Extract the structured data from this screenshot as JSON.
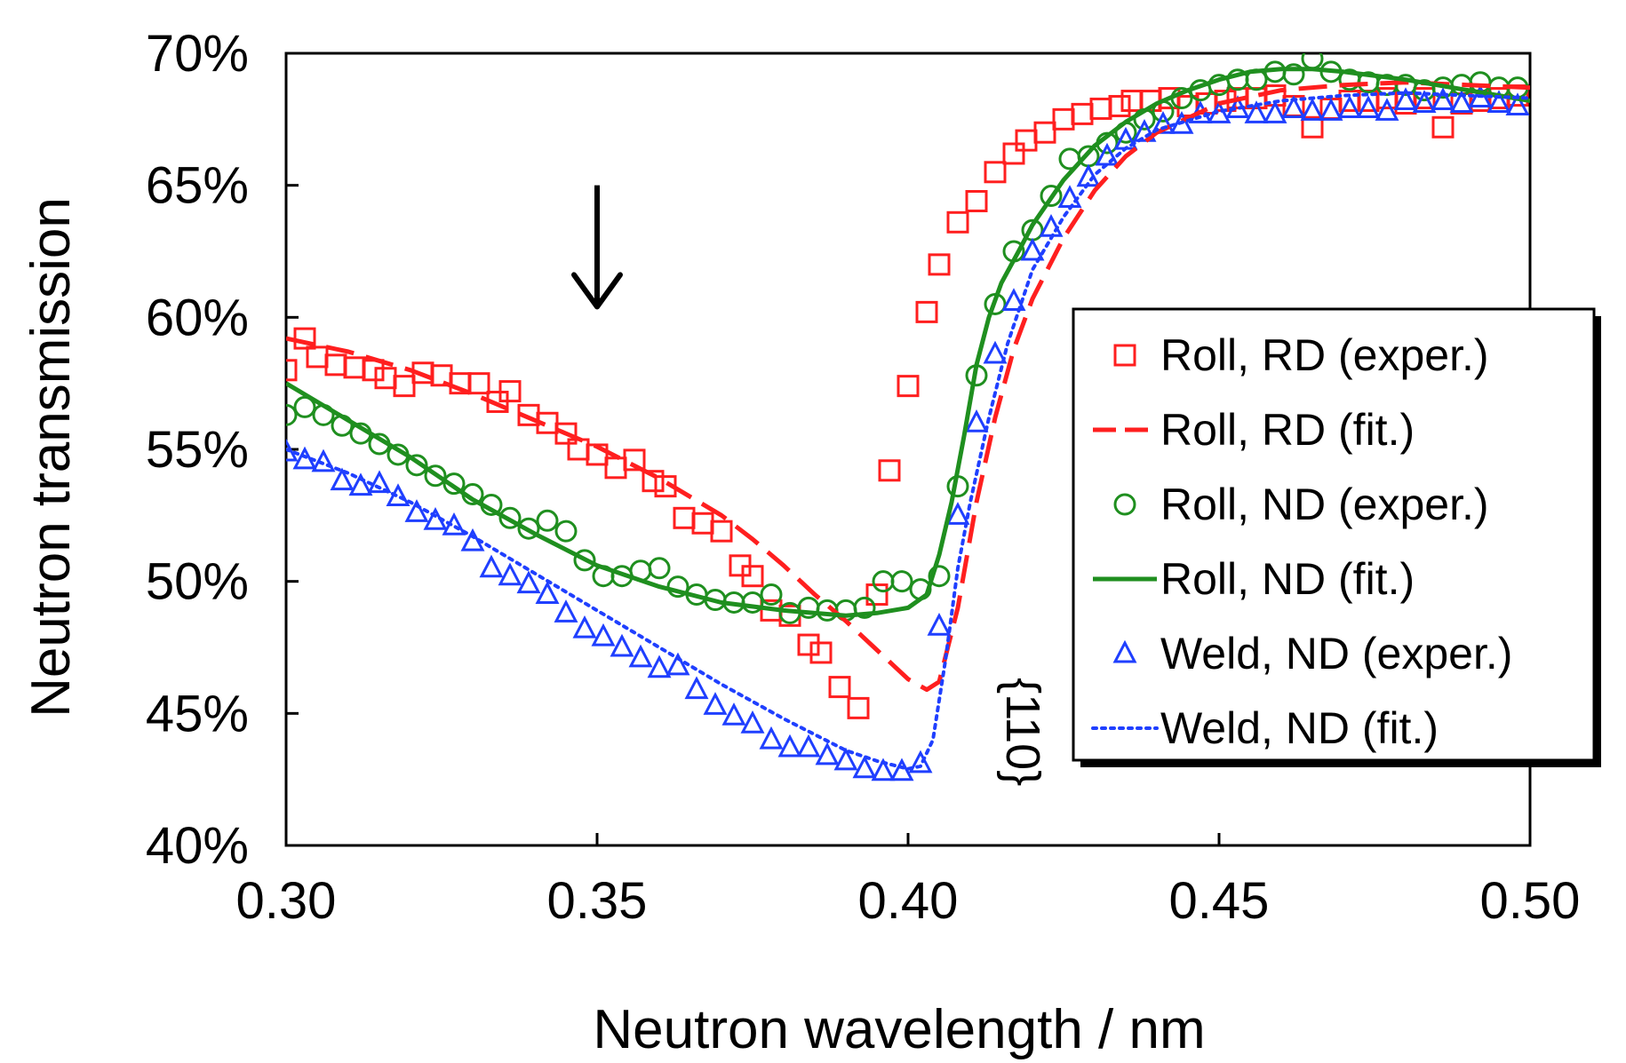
{
  "chart_data": {
    "type": "scatter",
    "xlabel": "Neutron wavelength / nm",
    "ylabel": "Neutron transmission",
    "xlim": [
      0.3,
      0.5
    ],
    "ylim": [
      0.4,
      0.7
    ],
    "x_ticks": [
      0.3,
      0.35,
      0.4,
      0.45,
      0.5
    ],
    "x_tick_labels": [
      "0.30",
      "0.35",
      "0.40",
      "0.45",
      "0.50"
    ],
    "y_ticks": [
      0.4,
      0.45,
      0.5,
      0.55,
      0.6,
      0.65,
      0.7
    ],
    "y_tick_labels": [
      "40%",
      "45%",
      "50%",
      "55%",
      "60%",
      "65%",
      "70%"
    ],
    "grid": false,
    "legend_position": "right",
    "annotations": [
      {
        "text": "{110}",
        "x": 0.413,
        "y": 0.443,
        "rotation": 90
      },
      {
        "type": "arrow",
        "x": 0.35,
        "y_from": 0.65,
        "y_to": 0.604
      }
    ],
    "series": [
      {
        "name": "Roll, RD (exper.)",
        "kind": "points",
        "marker": "square",
        "color": "#ff1f1f",
        "x": [
          0.3,
          0.303,
          0.305,
          0.308,
          0.311,
          0.314,
          0.316,
          0.319,
          0.322,
          0.325,
          0.328,
          0.331,
          0.334,
          0.336,
          0.339,
          0.342,
          0.345,
          0.347,
          0.35,
          0.353,
          0.356,
          0.359,
          0.361,
          0.364,
          0.367,
          0.37,
          0.373,
          0.375,
          0.378,
          0.381,
          0.384,
          0.386,
          0.389,
          0.392,
          0.395,
          0.397,
          0.4,
          0.403,
          0.405,
          0.408,
          0.411,
          0.414,
          0.417,
          0.419,
          0.422,
          0.425,
          0.428,
          0.431,
          0.434,
          0.436,
          0.439,
          0.442,
          0.445,
          0.448,
          0.451,
          0.453,
          0.456,
          0.459,
          0.462,
          0.465,
          0.468,
          0.471,
          0.474,
          0.477,
          0.48,
          0.483,
          0.486,
          0.489,
          0.492,
          0.495,
          0.498
        ],
        "y": [
          0.58,
          0.592,
          0.585,
          0.582,
          0.581,
          0.58,
          0.577,
          0.574,
          0.579,
          0.578,
          0.575,
          0.575,
          0.568,
          0.572,
          0.563,
          0.56,
          0.556,
          0.55,
          0.548,
          0.543,
          0.546,
          0.538,
          0.536,
          0.524,
          0.522,
          0.519,
          0.506,
          0.502,
          0.489,
          0.487,
          0.476,
          0.473,
          0.46,
          0.452,
          0.495,
          0.542,
          0.574,
          0.602,
          0.62,
          0.636,
          0.644,
          0.655,
          0.662,
          0.667,
          0.67,
          0.675,
          0.677,
          0.679,
          0.68,
          0.682,
          0.682,
          0.683,
          0.68,
          0.681,
          0.682,
          0.683,
          0.683,
          0.684,
          0.68,
          0.672,
          0.679,
          0.682,
          0.682,
          0.683,
          0.681,
          0.683,
          0.672,
          0.681,
          0.682,
          0.683,
          0.684
        ]
      },
      {
        "name": "Roll, RD (fit.)",
        "kind": "line",
        "dash": "dashed",
        "color": "#ff1f1f",
        "x": [
          0.3,
          0.31,
          0.32,
          0.33,
          0.34,
          0.35,
          0.36,
          0.37,
          0.375,
          0.38,
          0.385,
          0.39,
          0.395,
          0.4,
          0.403,
          0.405,
          0.408,
          0.411,
          0.414,
          0.417,
          0.42,
          0.425,
          0.43,
          0.435,
          0.44,
          0.45,
          0.46,
          0.47,
          0.48,
          0.49,
          0.5
        ],
        "y": [
          0.592,
          0.587,
          0.58,
          0.571,
          0.561,
          0.551,
          0.539,
          0.525,
          0.516,
          0.506,
          0.495,
          0.485,
          0.474,
          0.463,
          0.459,
          0.462,
          0.49,
          0.53,
          0.562,
          0.588,
          0.607,
          0.63,
          0.648,
          0.661,
          0.67,
          0.681,
          0.686,
          0.688,
          0.689,
          0.688,
          0.687
        ]
      },
      {
        "name": "Roll, ND (exper.)",
        "kind": "points",
        "marker": "circle",
        "color": "#1f8f1f",
        "x": [
          0.3,
          0.303,
          0.306,
          0.309,
          0.312,
          0.315,
          0.318,
          0.321,
          0.324,
          0.327,
          0.33,
          0.333,
          0.336,
          0.339,
          0.342,
          0.345,
          0.348,
          0.351,
          0.354,
          0.357,
          0.36,
          0.363,
          0.366,
          0.369,
          0.372,
          0.375,
          0.378,
          0.381,
          0.384,
          0.387,
          0.39,
          0.393,
          0.396,
          0.399,
          0.402,
          0.405,
          0.408,
          0.411,
          0.414,
          0.417,
          0.42,
          0.423,
          0.426,
          0.429,
          0.432,
          0.435,
          0.438,
          0.441,
          0.444,
          0.447,
          0.45,
          0.453,
          0.456,
          0.459,
          0.462,
          0.465,
          0.468,
          0.471,
          0.474,
          0.477,
          0.48,
          0.483,
          0.486,
          0.489,
          0.492,
          0.495,
          0.498
        ],
        "y": [
          0.563,
          0.566,
          0.563,
          0.559,
          0.556,
          0.552,
          0.548,
          0.544,
          0.54,
          0.537,
          0.533,
          0.529,
          0.524,
          0.52,
          0.523,
          0.519,
          0.508,
          0.502,
          0.502,
          0.504,
          0.505,
          0.498,
          0.495,
          0.493,
          0.492,
          0.492,
          0.495,
          0.488,
          0.49,
          0.489,
          0.489,
          0.49,
          0.5,
          0.5,
          0.497,
          0.502,
          0.536,
          0.578,
          0.605,
          0.625,
          0.633,
          0.646,
          0.66,
          0.661,
          0.666,
          0.67,
          0.675,
          0.678,
          0.683,
          0.686,
          0.688,
          0.69,
          0.69,
          0.693,
          0.692,
          0.698,
          0.693,
          0.69,
          0.689,
          0.688,
          0.688,
          0.686,
          0.687,
          0.688,
          0.689,
          0.687,
          0.687
        ]
      },
      {
        "name": "Roll, ND (fit.)",
        "kind": "line",
        "dash": "solid",
        "color": "#1f8f1f",
        "x": [
          0.3,
          0.31,
          0.32,
          0.33,
          0.34,
          0.35,
          0.36,
          0.37,
          0.38,
          0.39,
          0.395,
          0.4,
          0.403,
          0.405,
          0.407,
          0.409,
          0.411,
          0.413,
          0.415,
          0.418,
          0.42,
          0.425,
          0.43,
          0.435,
          0.44,
          0.445,
          0.45,
          0.455,
          0.46,
          0.465,
          0.47,
          0.48,
          0.49,
          0.5
        ],
        "y": [
          0.575,
          0.561,
          0.547,
          0.531,
          0.518,
          0.506,
          0.498,
          0.492,
          0.489,
          0.487,
          0.488,
          0.49,
          0.495,
          0.51,
          0.53,
          0.555,
          0.582,
          0.6,
          0.613,
          0.626,
          0.635,
          0.652,
          0.665,
          0.674,
          0.681,
          0.686,
          0.69,
          0.693,
          0.694,
          0.694,
          0.693,
          0.69,
          0.686,
          0.682
        ]
      },
      {
        "name": "Weld, ND (exper.)",
        "kind": "points",
        "marker": "triangle",
        "color": "#1f3fff",
        "x": [
          0.3,
          0.303,
          0.306,
          0.309,
          0.312,
          0.315,
          0.318,
          0.321,
          0.324,
          0.327,
          0.33,
          0.333,
          0.336,
          0.339,
          0.342,
          0.345,
          0.348,
          0.351,
          0.354,
          0.357,
          0.36,
          0.363,
          0.366,
          0.369,
          0.372,
          0.375,
          0.378,
          0.381,
          0.384,
          0.387,
          0.39,
          0.393,
          0.396,
          0.399,
          0.402,
          0.405,
          0.408,
          0.411,
          0.414,
          0.417,
          0.42,
          0.423,
          0.426,
          0.429,
          0.432,
          0.435,
          0.438,
          0.441,
          0.444,
          0.447,
          0.45,
          0.453,
          0.456,
          0.459,
          0.462,
          0.465,
          0.468,
          0.471,
          0.474,
          0.477,
          0.48,
          0.483,
          0.486,
          0.489,
          0.492,
          0.495,
          0.498
        ],
        "y": [
          0.549,
          0.546,
          0.545,
          0.538,
          0.536,
          0.537,
          0.532,
          0.526,
          0.523,
          0.521,
          0.515,
          0.505,
          0.502,
          0.499,
          0.495,
          0.488,
          0.482,
          0.479,
          0.475,
          0.471,
          0.467,
          0.468,
          0.459,
          0.453,
          0.449,
          0.446,
          0.44,
          0.437,
          0.437,
          0.434,
          0.432,
          0.429,
          0.428,
          0.428,
          0.431,
          0.483,
          0.525,
          0.56,
          0.586,
          0.606,
          0.625,
          0.634,
          0.645,
          0.653,
          0.661,
          0.667,
          0.67,
          0.673,
          0.673,
          0.677,
          0.677,
          0.679,
          0.677,
          0.677,
          0.679,
          0.678,
          0.678,
          0.679,
          0.679,
          0.678,
          0.682,
          0.681,
          0.682,
          0.681,
          0.683,
          0.681,
          0.68
        ]
      },
      {
        "name": "Weld, ND (fit.)",
        "kind": "line",
        "dash": "dotted",
        "color": "#1f3fff",
        "x": [
          0.3,
          0.31,
          0.32,
          0.33,
          0.34,
          0.35,
          0.36,
          0.37,
          0.38,
          0.39,
          0.395,
          0.4,
          0.402,
          0.404,
          0.406,
          0.408,
          0.41,
          0.413,
          0.416,
          0.42,
          0.425,
          0.43,
          0.435,
          0.44,
          0.45,
          0.46,
          0.47,
          0.48,
          0.49,
          0.5
        ],
        "y": [
          0.55,
          0.541,
          0.53,
          0.517,
          0.503,
          0.489,
          0.475,
          0.461,
          0.448,
          0.436,
          0.432,
          0.429,
          0.43,
          0.44,
          0.47,
          0.505,
          0.53,
          0.562,
          0.59,
          0.618,
          0.638,
          0.654,
          0.664,
          0.671,
          0.678,
          0.682,
          0.684,
          0.685,
          0.684,
          0.683
        ]
      }
    ]
  }
}
